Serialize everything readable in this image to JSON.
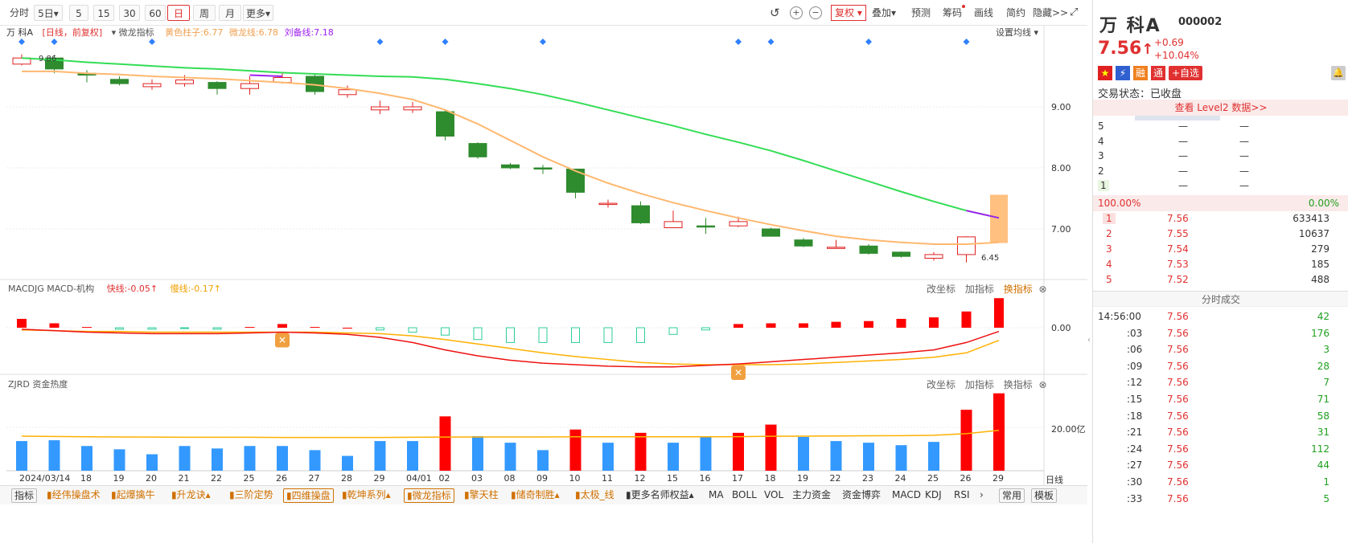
{
  "toolbar": {
    "periods": [
      "分时",
      "5日",
      "5",
      "15",
      "30",
      "60",
      "日",
      "周",
      "月",
      "更多"
    ],
    "active_period": "日",
    "fuquan": "复权",
    "tools": [
      "叠加",
      "预测",
      "筹码",
      "画线",
      "简约",
      "隐藏>>"
    ]
  },
  "stock": {
    "name": "万 科A",
    "code": "000002",
    "price": "7.56",
    "arrow": "↑",
    "change": "+0.69",
    "change_pct": "+10.04%",
    "trade_status": "交易状态：已收盘",
    "level2": "查看 Level2 数据>>",
    "add_watch": "+自选",
    "badges": [
      "融",
      "通"
    ]
  },
  "chart_header": {
    "name": "万 科A",
    "mode": "[日线，前复权]",
    "indicator": "微龙指标",
    "line1": "黄色柱子:6.77",
    "line2": "微龙线:6.78",
    "line3": "刘备线:7.18",
    "settings": "设置均线",
    "high_label": "9.86",
    "low_label": "6.45"
  },
  "macd_header": {
    "name": "MACDJG MACD-机构",
    "fast": "快线:-0.05↑",
    "slow": "慢线:-0.17↑",
    "actions": [
      "改坐标",
      "加指标",
      "换指标"
    ]
  },
  "zjrd_header": {
    "name": "ZJRD 资金热度",
    "actions": [
      "改坐标",
      "加指标",
      "换指标"
    ]
  },
  "axis": {
    "price_ticks": [
      "9.00",
      "8.00",
      "7.00"
    ],
    "macd_tick": "0.00",
    "vol_tick": "20.00亿",
    "period_label": "日线"
  },
  "chart_data": {
    "type": "candlestick",
    "dates": [
      "2024/03/14",
      "15",
      "18",
      "19",
      "20",
      "21",
      "22",
      "25",
      "26",
      "27",
      "28",
      "29",
      "04/01",
      "02",
      "03",
      "08",
      "09",
      "10",
      "11",
      "12",
      "15",
      "16",
      "17",
      "18",
      "19",
      "22",
      "23",
      "24",
      "25",
      "26",
      "29"
    ],
    "x_labels": [
      "2024/03/14",
      "18",
      "19",
      "20",
      "21",
      "22",
      "25",
      "26",
      "27",
      "28",
      "29",
      "04/01",
      "02",
      "03",
      "08",
      "09",
      "10",
      "11",
      "12",
      "15",
      "16",
      "17",
      "18",
      "19",
      "22",
      "23",
      "24",
      "25",
      "26",
      "29"
    ],
    "ohlc": [
      [
        9.7,
        9.8,
        9.86,
        9.68
      ],
      [
        9.8,
        9.62,
        9.85,
        9.55
      ],
      [
        9.55,
        9.52,
        9.6,
        9.4
      ],
      [
        9.45,
        9.38,
        9.5,
        9.35
      ],
      [
        9.33,
        9.38,
        9.45,
        9.28
      ],
      [
        9.38,
        9.44,
        9.52,
        9.33
      ],
      [
        9.4,
        9.3,
        9.42,
        9.2
      ],
      [
        9.3,
        9.38,
        9.5,
        9.2
      ],
      [
        9.4,
        9.48,
        9.55,
        9.38
      ],
      [
        9.5,
        9.25,
        9.55,
        9.2
      ],
      [
        9.2,
        9.28,
        9.35,
        9.15
      ],
      [
        8.95,
        9.0,
        9.1,
        8.88
      ],
      [
        8.95,
        9.0,
        9.08,
        8.9
      ],
      [
        8.92,
        8.52,
        8.95,
        8.45
      ],
      [
        8.4,
        8.18,
        8.42,
        8.15
      ],
      [
        8.05,
        8.0,
        8.08,
        7.98
      ],
      [
        8.0,
        7.98,
        8.05,
        7.9
      ],
      [
        7.98,
        7.6,
        7.98,
        7.5
      ],
      [
        7.4,
        7.42,
        7.48,
        7.35
      ],
      [
        7.38,
        7.1,
        7.45,
        7.08
      ],
      [
        7.02,
        7.12,
        7.3,
        7.02
      ],
      [
        7.05,
        7.03,
        7.18,
        6.92
      ],
      [
        7.05,
        7.12,
        7.2,
        7.03
      ],
      [
        7.0,
        6.88,
        7.02,
        6.88
      ],
      [
        6.82,
        6.72,
        6.85,
        6.7
      ],
      [
        6.7,
        6.7,
        6.82,
        6.68
      ],
      [
        6.72,
        6.6,
        6.75,
        6.58
      ],
      [
        6.62,
        6.55,
        6.63,
        6.53
      ],
      [
        6.52,
        6.58,
        6.62,
        6.48
      ],
      [
        6.58,
        6.87,
        6.88,
        6.45
      ],
      [
        6.77,
        7.56,
        7.56,
        6.77
      ]
    ],
    "green_line": [
      9.8,
      9.77,
      9.73,
      9.7,
      9.67,
      9.64,
      9.62,
      9.59,
      9.56,
      9.54,
      9.52,
      9.5,
      9.49,
      9.45,
      9.38,
      9.3,
      9.2,
      9.08,
      8.95,
      8.82,
      8.69,
      8.55,
      8.42,
      8.28,
      8.12,
      7.95,
      7.78,
      7.61,
      7.45,
      7.3,
      7.18
    ],
    "orange_line": [
      9.58,
      9.58,
      9.55,
      9.53,
      9.5,
      9.48,
      9.46,
      9.43,
      9.4,
      9.36,
      9.3,
      9.22,
      9.12,
      8.95,
      8.72,
      8.45,
      8.18,
      7.95,
      7.75,
      7.58,
      7.43,
      7.3,
      7.18,
      7.07,
      6.97,
      6.88,
      6.82,
      6.78,
      6.75,
      6.75,
      6.78
    ],
    "markers": [
      0,
      1,
      4,
      11,
      13,
      16,
      22,
      23,
      26,
      29
    ],
    "macd_hist": [
      0.12,
      0.06,
      0.01,
      -0.02,
      -0.02,
      -0.01,
      -0.02,
      0.01,
      0.05,
      0.01,
      0.0,
      -0.03,
      -0.06,
      -0.1,
      -0.16,
      -0.2,
      -0.2,
      -0.2,
      -0.2,
      -0.2,
      -0.09,
      -0.03,
      0.05,
      0.06,
      0.06,
      0.08,
      0.09,
      0.12,
      0.14,
      0.22,
      0.4
    ],
    "macd_fast": [
      -0.02,
      -0.04,
      -0.06,
      -0.07,
      -0.08,
      -0.08,
      -0.08,
      -0.07,
      -0.06,
      -0.07,
      -0.09,
      -0.13,
      -0.2,
      -0.3,
      -0.38,
      -0.44,
      -0.48,
      -0.5,
      -0.52,
      -0.53,
      -0.53,
      -0.51,
      -0.49,
      -0.46,
      -0.43,
      -0.4,
      -0.37,
      -0.34,
      -0.3,
      -0.2,
      -0.05
    ],
    "macd_slow": [
      -0.03,
      -0.04,
      -0.05,
      -0.05,
      -0.06,
      -0.06,
      -0.06,
      -0.06,
      -0.06,
      -0.06,
      -0.07,
      -0.08,
      -0.11,
      -0.16,
      -0.22,
      -0.28,
      -0.34,
      -0.39,
      -0.43,
      -0.47,
      -0.49,
      -0.5,
      -0.5,
      -0.5,
      -0.49,
      -0.47,
      -0.45,
      -0.43,
      -0.4,
      -0.34,
      -0.17
    ],
    "heat": [
      18,
      18.5,
      15,
      13,
      10,
      15,
      13.5,
      15,
      15,
      12.5,
      9,
      18,
      18,
      33,
      21,
      17,
      12.5,
      25,
      17,
      23,
      17,
      20.5,
      23,
      28,
      20.5,
      18,
      17,
      15.5,
      17.5,
      37,
      47
    ],
    "heat_up": [
      false,
      false,
      false,
      false,
      false,
      false,
      false,
      false,
      false,
      false,
      false,
      false,
      false,
      true,
      false,
      false,
      false,
      true,
      false,
      true,
      false,
      false,
      true,
      true,
      false,
      false,
      false,
      false,
      false,
      true,
      true
    ],
    "heat_line": [
      21,
      20.8,
      20.6,
      20.5,
      20.4,
      20.3,
      20.3,
      20.3,
      20.2,
      20.2,
      20.2,
      20.2,
      20.3,
      20.4,
      20.5,
      20.5,
      20.5,
      20.6,
      20.6,
      20.6,
      20.6,
      20.6,
      20.7,
      20.9,
      21,
      21.1,
      21.2,
      21.3,
      21.5,
      22.5,
      24.5
    ]
  },
  "order_book": {
    "sell": [
      {
        "lv": "5",
        "price": "—",
        "vol": "—"
      },
      {
        "lv": "4",
        "price": "—",
        "vol": "—"
      },
      {
        "lv": "3",
        "price": "—",
        "vol": "—"
      },
      {
        "lv": "2",
        "price": "—",
        "vol": "—"
      },
      {
        "lv": "1",
        "price": "—",
        "vol": "—"
      }
    ],
    "ratio_left": "100.00%",
    "ratio_right": "0.00%",
    "buy": [
      {
        "lv": "1",
        "price": "7.56",
        "vol": "633413"
      },
      {
        "lv": "2",
        "price": "7.55",
        "vol": "10637"
      },
      {
        "lv": "3",
        "price": "7.54",
        "vol": "279"
      },
      {
        "lv": "4",
        "price": "7.53",
        "vol": "185"
      },
      {
        "lv": "5",
        "price": "7.52",
        "vol": "488"
      }
    ]
  },
  "trades": {
    "title": "分时成交",
    "rows": [
      {
        "t": "14:56:00",
        "p": "7.56",
        "v": "42"
      },
      {
        "t": ":03",
        "p": "7.56",
        "v": "176"
      },
      {
        "t": ":06",
        "p": "7.56",
        "v": "3"
      },
      {
        "t": ":09",
        "p": "7.56",
        "v": "28"
      },
      {
        "t": ":12",
        "p": "7.56",
        "v": "7"
      },
      {
        "t": ":15",
        "p": "7.56",
        "v": "71"
      },
      {
        "t": ":18",
        "p": "7.56",
        "v": "58"
      },
      {
        "t": ":21",
        "p": "7.56",
        "v": "31"
      },
      {
        "t": ":24",
        "p": "7.56",
        "v": "112"
      },
      {
        "t": ":27",
        "p": "7.56",
        "v": "44"
      },
      {
        "t": ":30",
        "p": "7.56",
        "v": "1"
      },
      {
        "t": ":33",
        "p": "7.56",
        "v": "5"
      }
    ]
  },
  "bottom_tabs": [
    "指标",
    "经伟操盘术",
    "起爆擒牛",
    "升龙诀",
    "三阶定势",
    "四维操盘",
    "乾坤系列",
    "微龙指标",
    "擎天柱",
    "储奇制胜",
    "太极_线",
    "更多名师权益",
    "MA",
    "BOLL",
    "VOL",
    "主力资金",
    "资金博弈",
    "MACD",
    "KDJ",
    "RSI",
    "常用",
    "模板"
  ]
}
